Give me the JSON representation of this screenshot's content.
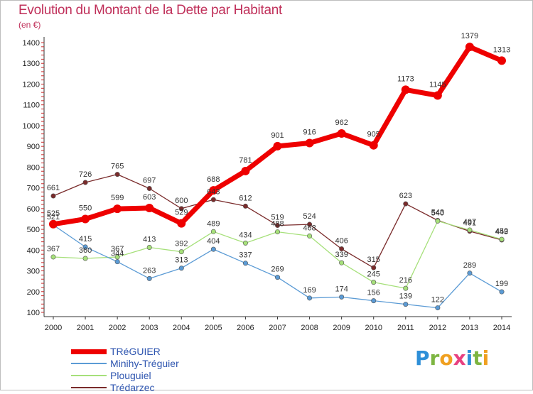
{
  "title": "Evolution du Montant de la Dette par Habitant",
  "subtitle": "(en €)",
  "brand": "Proxiti",
  "brand_letters": [
    {
      "ch": "P",
      "color": "#2e8fd8"
    },
    {
      "ch": "r",
      "color": "#7db541"
    },
    {
      "ch": "o",
      "color": "#f0a020"
    },
    {
      "ch": "x",
      "color": "#e84080"
    },
    {
      "ch": "i",
      "color": "#2e8fd8"
    },
    {
      "ch": "t",
      "color": "#7db541"
    },
    {
      "ch": "i",
      "color": "#f0a020"
    }
  ],
  "chart_data": {
    "type": "line",
    "x": [
      "2000",
      "2001",
      "2002",
      "2003",
      "2004",
      "2005",
      "2006",
      "2007",
      "2008",
      "2009",
      "2010",
      "2011",
      "2012",
      "2013",
      "2014"
    ],
    "ylim": [
      100,
      1400
    ],
    "yticks": [
      100,
      200,
      300,
      400,
      500,
      600,
      700,
      800,
      900,
      1000,
      1100,
      1200,
      1300,
      1400
    ],
    "grid": false,
    "legend_position": "bottom-left",
    "series": [
      {
        "name": "TRéGUIER",
        "color": "#ee0000",
        "values": [
          525,
          550,
          599,
          603,
          529,
          688,
          781,
          901,
          916,
          962,
          905,
          1173,
          1145,
          1379,
          1313
        ]
      },
      {
        "name": "Minihy-Tréguier",
        "color": "#5b9bd5",
        "values": [
          521,
          415,
          344,
          263,
          313,
          404,
          337,
          269,
          169,
          174,
          156,
          139,
          122,
          289,
          199
        ]
      },
      {
        "name": "Plouguiel",
        "color": "#a6e07a",
        "values": [
          367,
          360,
          367,
          413,
          392,
          489,
          434,
          488,
          468,
          339,
          245,
          216,
          540,
          497,
          452
        ]
      },
      {
        "name": "Trédarzec",
        "color": "#7a2b2b",
        "values": [
          661,
          726,
          765,
          697,
          600,
          643,
          612,
          519,
          524,
          406,
          315,
          623,
          543,
          491,
          449
        ]
      }
    ]
  }
}
